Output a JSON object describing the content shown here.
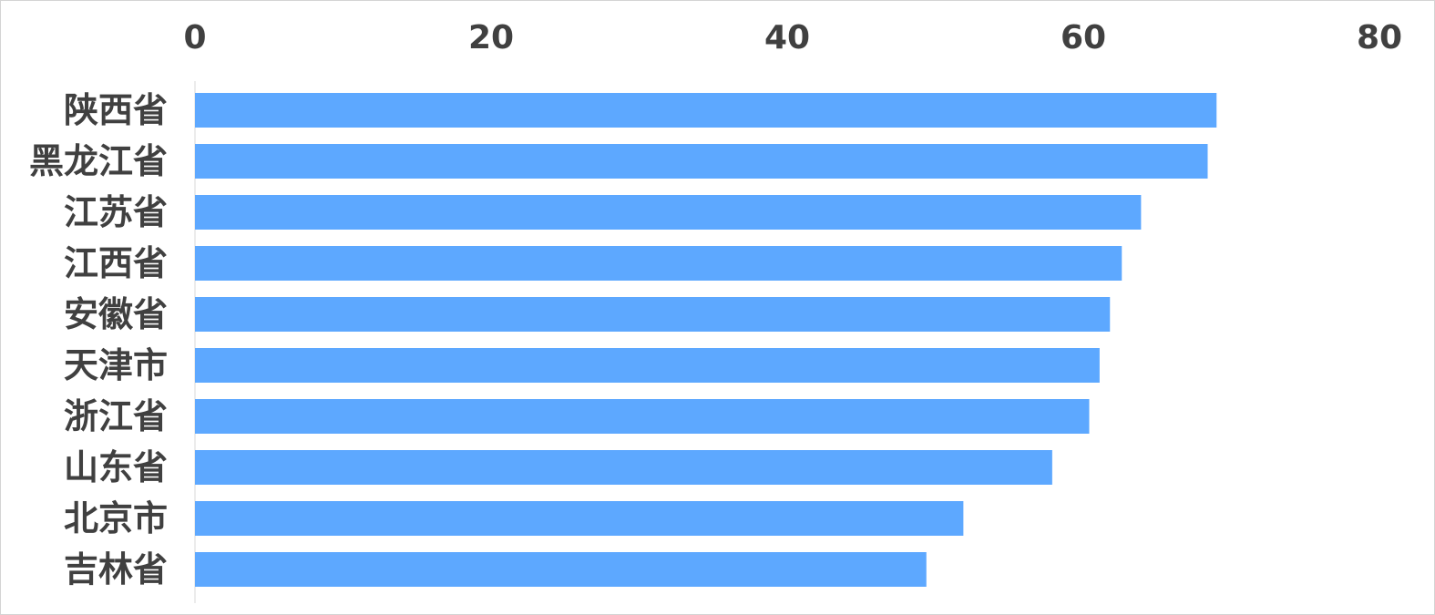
{
  "chart_data": {
    "type": "bar",
    "orientation": "horizontal",
    "categories": [
      "陕西省",
      "黑龙江省",
      "江苏省",
      "江西省",
      "安徽省",
      "天津市",
      "浙江省",
      "山东省",
      "北京市",
      "吉林省"
    ],
    "values": [
      69,
      68.4,
      63.9,
      62.6,
      61.8,
      61.1,
      60.4,
      57.9,
      51.9,
      49.4
    ],
    "xlim": [
      0,
      80
    ],
    "xticks": [
      "0",
      "20",
      "40",
      "60",
      "80"
    ],
    "axis_position": "top",
    "grid": false,
    "bar_color": "#5da8ff",
    "text_color": "#404040"
  }
}
